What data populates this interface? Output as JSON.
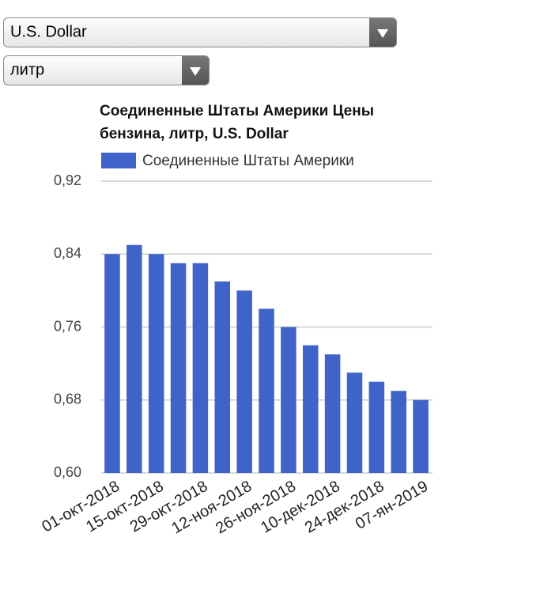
{
  "controls": {
    "currency": "U.S. Dollar",
    "unit": "литр"
  },
  "chart_data": {
    "type": "bar",
    "title": "Соединенные Штаты Америки Цены бензина, литр, U.S. Dollar",
    "categories": [
      "01-окт-2018",
      null,
      "15-окт-2018",
      null,
      "29-окт-2018",
      null,
      "12-ноя-2018",
      null,
      "26-ноя-2018",
      null,
      "10-дек-2018",
      null,
      "24-дек-2018",
      null,
      "07-ян-2019"
    ],
    "series": [
      {
        "name": "Соединенные Штаты Америки",
        "color": "#3f63c8",
        "values": [
          0.84,
          0.85,
          0.84,
          0.83,
          0.83,
          0.81,
          0.8,
          0.78,
          0.76,
          0.74,
          0.73,
          0.71,
          0.7,
          0.69,
          0.68
        ]
      }
    ],
    "ylim": [
      0.6,
      0.92
    ],
    "yticks": [
      {
        "value": 0.6,
        "label": "0,60"
      },
      {
        "value": 0.68,
        "label": "0,68"
      },
      {
        "value": 0.76,
        "label": "0,76"
      },
      {
        "value": 0.84,
        "label": "0,84"
      },
      {
        "value": 0.92,
        "label": "0,92"
      }
    ],
    "grid": true
  }
}
